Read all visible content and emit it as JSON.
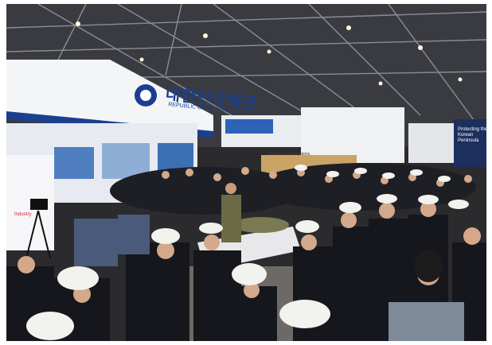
{
  "photo": {
    "booth_sign_korean": "대한민국해군",
    "booth_sign_english": "REPUBLIC OF KOREA NAVY",
    "right_sign_text": "Protecting the Korean Peninsula",
    "center_banner_text": "Hanwha Land Systems",
    "left_sign_text": "Industry"
  },
  "colors": {
    "ceiling": "#3a3b40",
    "booth_white": "#f4f5f7",
    "navy_blue": "#1b3f8f",
    "uniform_dark": "#16171c",
    "cap_white": "#f2f2ee",
    "floor": "#6d6a66"
  }
}
